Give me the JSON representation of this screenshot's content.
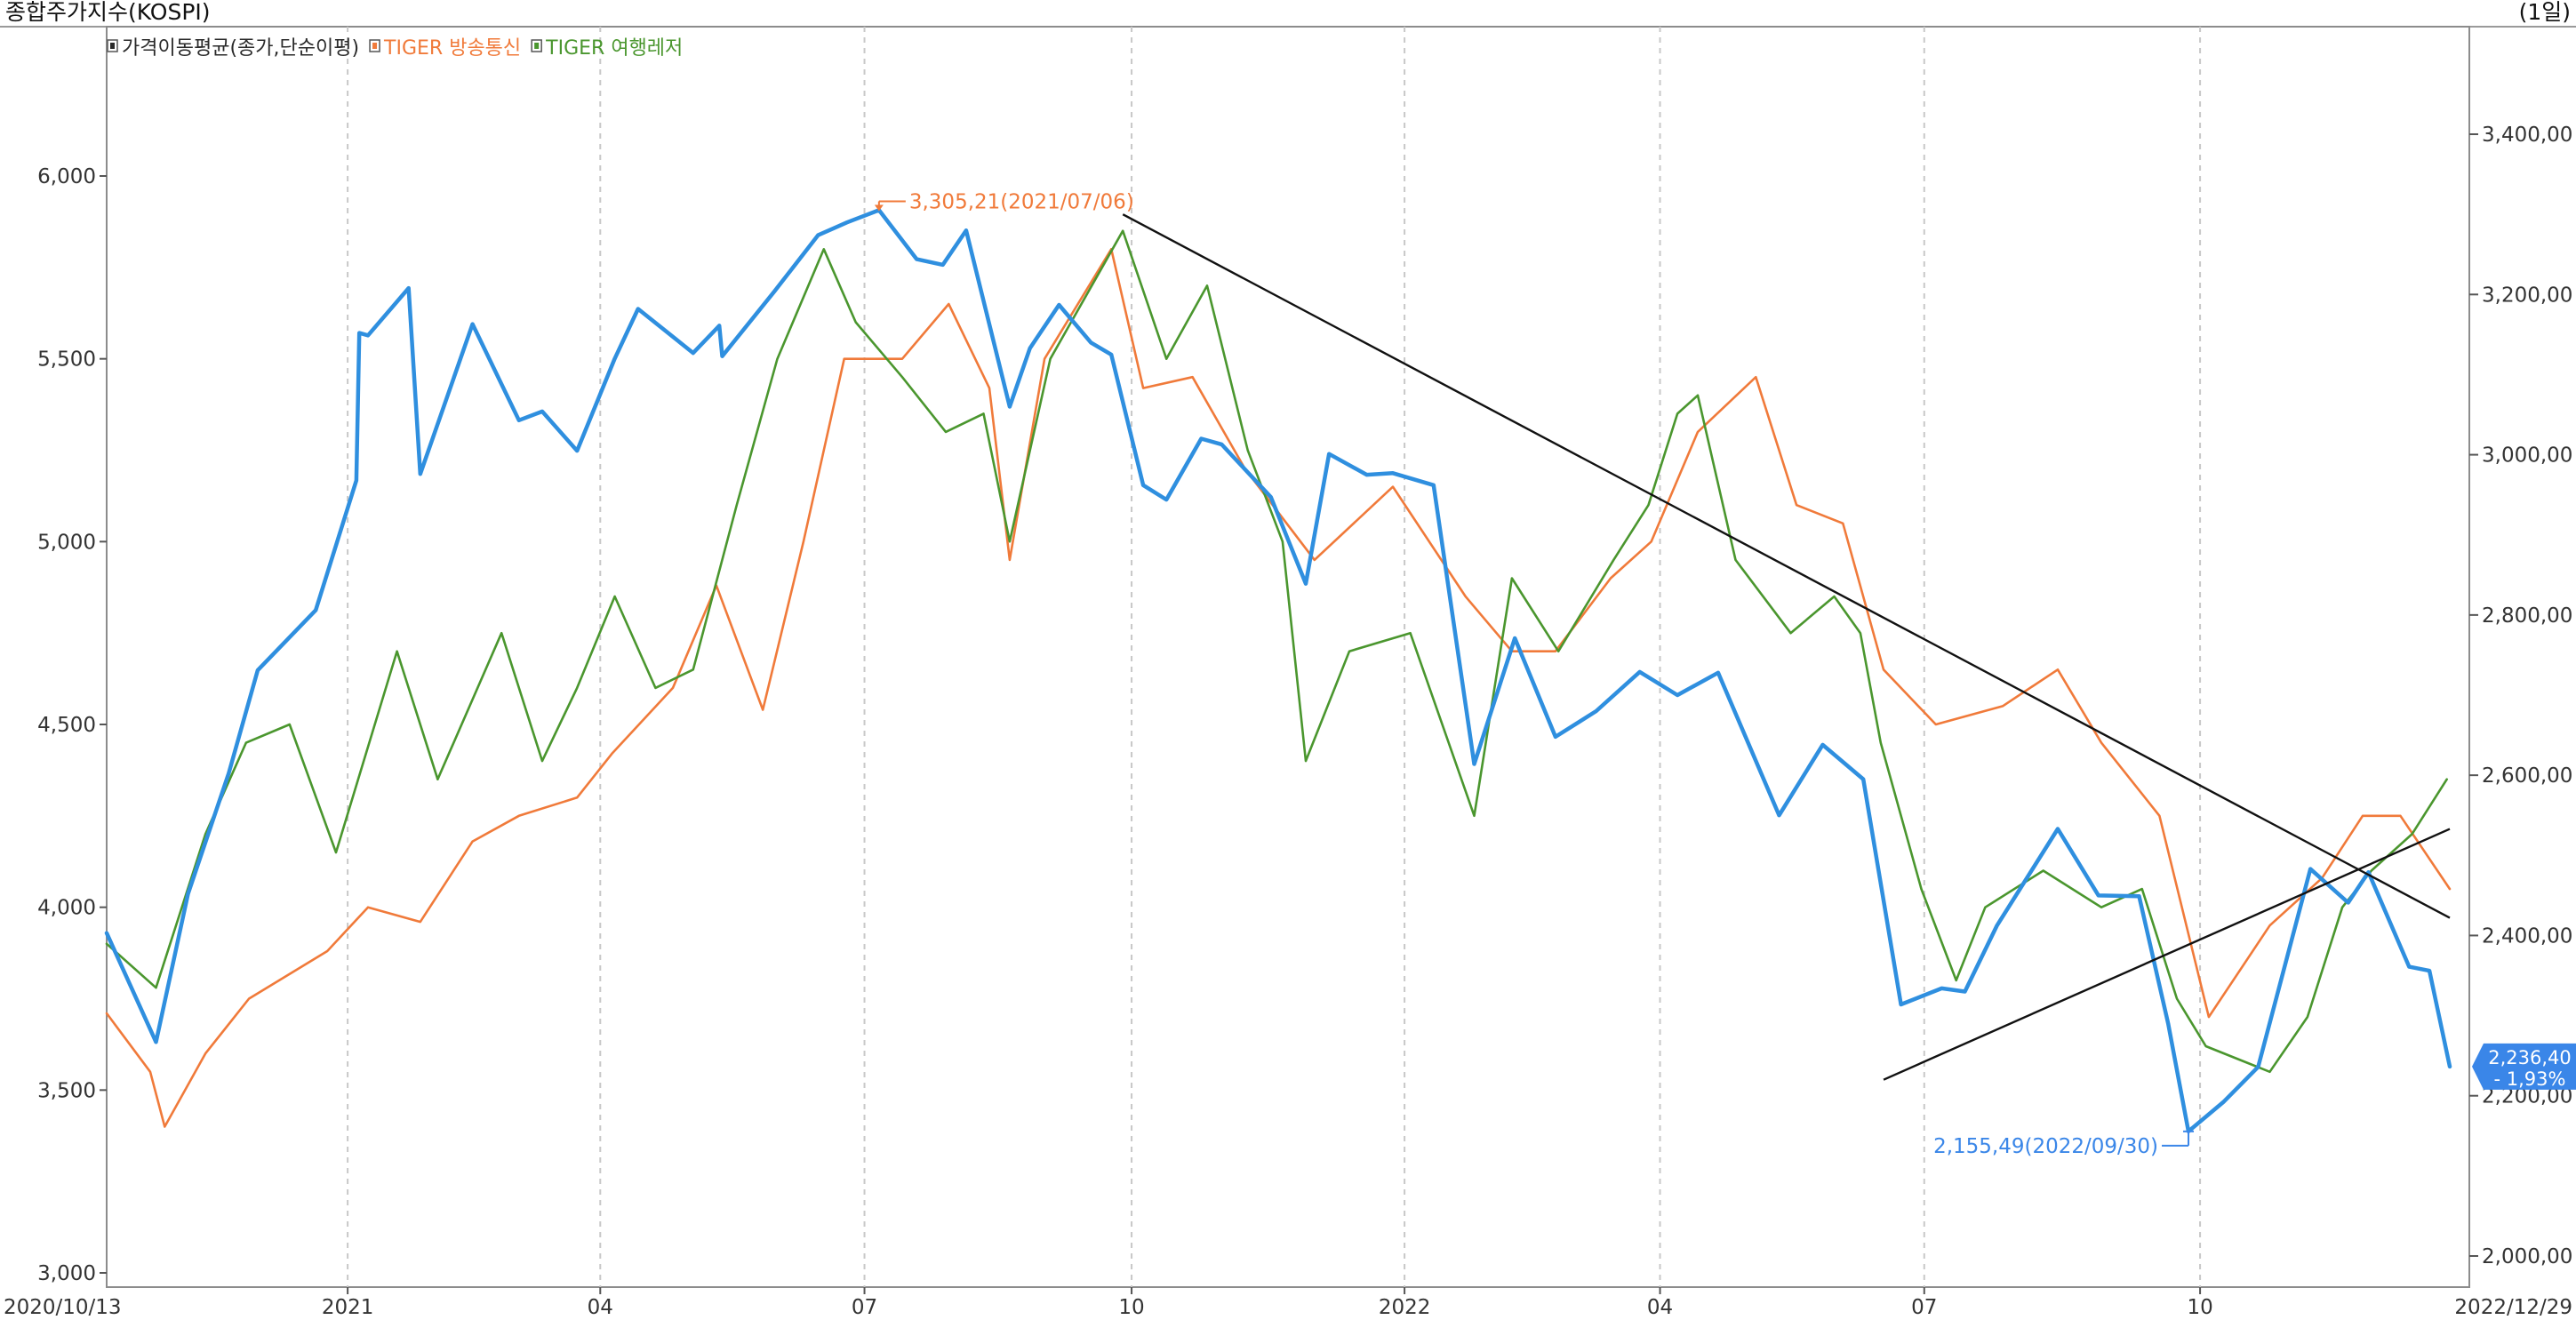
{
  "window": {
    "title": "종합주가지수(KOSPI)",
    "period": "(1일)"
  },
  "colors": {
    "kospi": "#2f8fdf",
    "broadcast": "#f07a3a",
    "travel": "#4a962e",
    "legend_ma": "#2a2a2a",
    "trendline": "#111111",
    "grid": "#c8c8c8",
    "axis_text": "#333333",
    "highlight": "#3a86e8"
  },
  "chart_data": {
    "type": "line",
    "title": "종합주가지수(KOSPI)",
    "x_range": [
      "2020/10/13",
      "2022/12/29"
    ],
    "x_start_label": "2020/10/13",
    "x_end_label": "2022/12/29",
    "x_ticks": [
      {
        "date": "2021-01-04",
        "label": "2021"
      },
      {
        "date": "2021-04-01",
        "label": "04"
      },
      {
        "date": "2021-07-01",
        "label": "07"
      },
      {
        "date": "2021-10-01",
        "label": "10"
      },
      {
        "date": "2022-01-03",
        "label": "2022"
      },
      {
        "date": "2022-04-01",
        "label": "04"
      },
      {
        "date": "2022-07-01",
        "label": "07"
      },
      {
        "date": "2022-10-04",
        "label": "10"
      }
    ],
    "y_left": {
      "range": [
        3000,
        6000
      ],
      "ticks": [
        3000,
        3500,
        4000,
        4500,
        5000,
        5500,
        6000
      ],
      "tick_labels": [
        "3,000",
        "3,500",
        "4,000",
        "4,500",
        "5,000",
        "5,500",
        "6,000"
      ]
    },
    "y_right": {
      "range": [
        2000,
        3400
      ],
      "ticks": [
        2000,
        2200,
        2400,
        2600,
        2800,
        3000,
        3200,
        3400
      ],
      "tick_labels": [
        "2,000,00",
        "2,200,00",
        "2,400,00",
        "2,600,00",
        "2,800,00",
        "3,000,00",
        "3,200,00",
        "3,400,00"
      ]
    },
    "grid": true,
    "legend": {
      "position": "top-left",
      "items": [
        {
          "label": "가격이동평균(종가,단순이평)",
          "color_key": "legend_ma"
        },
        {
          "label": "TIGER 방송통신",
          "color_key": "broadcast"
        },
        {
          "label": "TIGER 여행레저",
          "color_key": "travel"
        }
      ]
    },
    "series": [
      {
        "name": "종합주가지수(KOSPI)",
        "axis": "right",
        "color_key": "kospi",
        "points": [
          [
            "2020-10-13",
            2403
          ],
          [
            "2020-10-30",
            2267
          ],
          [
            "2020-11-10",
            2452
          ],
          [
            "2020-11-24",
            2602
          ],
          [
            "2020-12-04",
            2731
          ],
          [
            "2020-12-24",
            2806
          ],
          [
            "2021-01-07",
            2968
          ],
          [
            "2021-01-08",
            3152
          ],
          [
            "2021-01-11",
            3149
          ],
          [
            "2021-01-25",
            3208
          ],
          [
            "2021-01-29",
            2976
          ],
          [
            "2021-02-16",
            3163
          ],
          [
            "2021-03-04",
            3043
          ],
          [
            "2021-03-12",
            3054
          ],
          [
            "2021-03-24",
            3005
          ],
          [
            "2021-04-06",
            3120
          ],
          [
            "2021-04-14",
            3182
          ],
          [
            "2021-05-03",
            3127
          ],
          [
            "2021-05-12",
            3161
          ],
          [
            "2021-05-13",
            3123
          ],
          [
            "2021-05-31",
            3204
          ],
          [
            "2021-06-15",
            3274
          ],
          [
            "2021-06-25",
            3290
          ],
          [
            "2021-07-06",
            3305.21
          ],
          [
            "2021-07-19",
            3244
          ],
          [
            "2021-07-28",
            3237
          ],
          [
            "2021-08-05",
            3280
          ],
          [
            "2021-08-20",
            3060
          ],
          [
            "2021-08-27",
            3133
          ],
          [
            "2021-09-06",
            3187
          ],
          [
            "2021-09-17",
            3140
          ],
          [
            "2021-09-24",
            3125
          ],
          [
            "2021-10-05",
            2962
          ],
          [
            "2021-10-13",
            2944
          ],
          [
            "2021-10-25",
            3020
          ],
          [
            "2021-11-01",
            3013
          ],
          [
            "2021-11-18",
            2947
          ],
          [
            "2021-11-30",
            2839
          ],
          [
            "2021-12-08",
            3001
          ],
          [
            "2021-12-21",
            2975
          ],
          [
            "2021-12-30",
            2977
          ],
          [
            "2022-01-13",
            2962
          ],
          [
            "2022-01-27",
            2614
          ],
          [
            "2022-02-10",
            2771
          ],
          [
            "2022-02-24",
            2648
          ],
          [
            "2022-03-10",
            2680
          ],
          [
            "2022-03-25",
            2729
          ],
          [
            "2022-04-07",
            2700
          ],
          [
            "2022-04-21",
            2728
          ],
          [
            "2022-05-12",
            2550
          ],
          [
            "2022-05-27",
            2638
          ],
          [
            "2022-06-10",
            2595
          ],
          [
            "2022-06-23",
            2314
          ],
          [
            "2022-07-07",
            2334
          ],
          [
            "2022-07-15",
            2330
          ],
          [
            "2022-07-26",
            2412
          ],
          [
            "2022-08-16",
            2533
          ],
          [
            "2022-08-30",
            2450
          ],
          [
            "2022-09-13",
            2449
          ],
          [
            "2022-09-23",
            2290
          ],
          [
            "2022-09-30",
            2155.49
          ],
          [
            "2022-10-12",
            2192
          ],
          [
            "2022-10-24",
            2236
          ],
          [
            "2022-11-11",
            2483
          ],
          [
            "2022-11-24",
            2441
          ],
          [
            "2022-12-01",
            2479
          ],
          [
            "2022-12-15",
            2361
          ],
          [
            "2022-12-22",
            2356
          ],
          [
            "2022-12-29",
            2236.4
          ]
        ]
      },
      {
        "name": "TIGER 방송통신",
        "axis": "left",
        "color_key": "broadcast",
        "points": [
          [
            "2020-10-13",
            3710
          ],
          [
            "2020-10-28",
            3550
          ],
          [
            "2020-11-02",
            3400
          ],
          [
            "2020-11-16",
            3600
          ],
          [
            "2020-12-01",
            3750
          ],
          [
            "2020-12-28",
            3880
          ],
          [
            "2021-01-11",
            4000
          ],
          [
            "2021-01-29",
            3960
          ],
          [
            "2021-02-16",
            4180
          ],
          [
            "2021-03-04",
            4250
          ],
          [
            "2021-03-24",
            4300
          ],
          [
            "2021-04-05",
            4420
          ],
          [
            "2021-04-26",
            4600
          ],
          [
            "2021-05-11",
            4880
          ],
          [
            "2021-05-27",
            4540
          ],
          [
            "2021-06-10",
            5000
          ],
          [
            "2021-06-24",
            5500
          ],
          [
            "2021-07-14",
            5500
          ],
          [
            "2021-07-30",
            5650
          ],
          [
            "2021-08-13",
            5420
          ],
          [
            "2021-08-20",
            4950
          ],
          [
            "2021-09-01",
            5500
          ],
          [
            "2021-09-24",
            5800
          ],
          [
            "2021-10-05",
            5420
          ],
          [
            "2021-10-22",
            5450
          ],
          [
            "2021-11-09",
            5200
          ],
          [
            "2021-12-03",
            4950
          ],
          [
            "2021-12-30",
            5150
          ],
          [
            "2022-01-24",
            4850
          ],
          [
            "2022-02-09",
            4700
          ],
          [
            "2022-02-24",
            4700
          ],
          [
            "2022-03-15",
            4900
          ],
          [
            "2022-03-29",
            5000
          ],
          [
            "2022-04-14",
            5300
          ],
          [
            "2022-05-04",
            5450
          ],
          [
            "2022-05-18",
            5100
          ],
          [
            "2022-06-03",
            5050
          ],
          [
            "2022-06-17",
            4650
          ],
          [
            "2022-07-05",
            4500
          ],
          [
            "2022-07-28",
            4550
          ],
          [
            "2022-08-16",
            4650
          ],
          [
            "2022-08-31",
            4450
          ],
          [
            "2022-09-20",
            4250
          ],
          [
            "2022-10-07",
            3700
          ],
          [
            "2022-10-28",
            3950
          ],
          [
            "2022-11-15",
            4080
          ],
          [
            "2022-11-29",
            4250
          ],
          [
            "2022-12-12",
            4250
          ],
          [
            "2022-12-29",
            4050
          ]
        ]
      },
      {
        "name": "TIGER 여행레저",
        "axis": "left",
        "color_key": "travel",
        "points": [
          [
            "2020-10-13",
            3900
          ],
          [
            "2020-10-30",
            3780
          ],
          [
            "2020-11-16",
            4200
          ],
          [
            "2020-11-30",
            4450
          ],
          [
            "2020-12-15",
            4500
          ],
          [
            "2020-12-31",
            4150
          ],
          [
            "2021-01-21",
            4700
          ],
          [
            "2021-02-04",
            4350
          ],
          [
            "2021-02-26",
            4750
          ],
          [
            "2021-03-12",
            4400
          ],
          [
            "2021-03-24",
            4600
          ],
          [
            "2021-04-06",
            4850
          ],
          [
            "2021-04-20",
            4600
          ],
          [
            "2021-05-03",
            4650
          ],
          [
            "2021-05-18",
            5100
          ],
          [
            "2021-06-01",
            5500
          ],
          [
            "2021-06-17",
            5800
          ],
          [
            "2021-06-28",
            5600
          ],
          [
            "2021-07-14",
            5450
          ],
          [
            "2021-07-29",
            5300
          ],
          [
            "2021-08-11",
            5350
          ],
          [
            "2021-08-20",
            5000
          ],
          [
            "2021-09-03",
            5500
          ],
          [
            "2021-09-28",
            5850
          ],
          [
            "2021-10-13",
            5500
          ],
          [
            "2021-10-27",
            5700
          ],
          [
            "2021-11-10",
            5250
          ],
          [
            "2021-11-22",
            5000
          ],
          [
            "2021-11-30",
            4400
          ],
          [
            "2021-12-15",
            4700
          ],
          [
            "2022-01-05",
            4750
          ],
          [
            "2022-01-27",
            4250
          ],
          [
            "2022-02-09",
            4900
          ],
          [
            "2022-02-25",
            4700
          ],
          [
            "2022-03-16",
            4950
          ],
          [
            "2022-03-28",
            5100
          ],
          [
            "2022-04-07",
            5350
          ],
          [
            "2022-04-14",
            5400
          ],
          [
            "2022-04-27",
            4950
          ],
          [
            "2022-05-16",
            4750
          ],
          [
            "2022-05-31",
            4850
          ],
          [
            "2022-06-09",
            4750
          ],
          [
            "2022-06-16",
            4450
          ],
          [
            "2022-06-30",
            4050
          ],
          [
            "2022-07-12",
            3800
          ],
          [
            "2022-07-22",
            4000
          ],
          [
            "2022-08-11",
            4100
          ],
          [
            "2022-08-31",
            4000
          ],
          [
            "2022-09-14",
            4050
          ],
          [
            "2022-09-26",
            3750
          ],
          [
            "2022-10-06",
            3620
          ],
          [
            "2022-10-28",
            3550
          ],
          [
            "2022-11-10",
            3700
          ],
          [
            "2022-11-22",
            4000
          ],
          [
            "2022-12-02",
            4100
          ],
          [
            "2022-12-16",
            4200
          ],
          [
            "2022-12-28",
            4350
          ]
        ]
      }
    ],
    "trendlines": [
      {
        "axis": "right",
        "from": [
          "2021-09-28",
          3300
        ],
        "to": [
          "2022-12-29",
          2422
        ]
      },
      {
        "axis": "right",
        "from": [
          "2022-06-17",
          2220
        ],
        "to": [
          "2022-12-29",
          2533
        ]
      }
    ],
    "annotations": [
      {
        "text": "3,305,21(2021/07/06)",
        "date": "2021-07-06",
        "value": 3305.21,
        "axis": "right",
        "color_key": "broadcast",
        "placement": "right-above"
      },
      {
        "text": "2,155,49(2022/09/30)",
        "date": "2022-09-30",
        "value": 2155.49,
        "axis": "right",
        "color_key": "highlight",
        "placement": "left-below"
      }
    ],
    "last_value": {
      "value": "2,236,40",
      "change": "- 1,93%"
    }
  }
}
